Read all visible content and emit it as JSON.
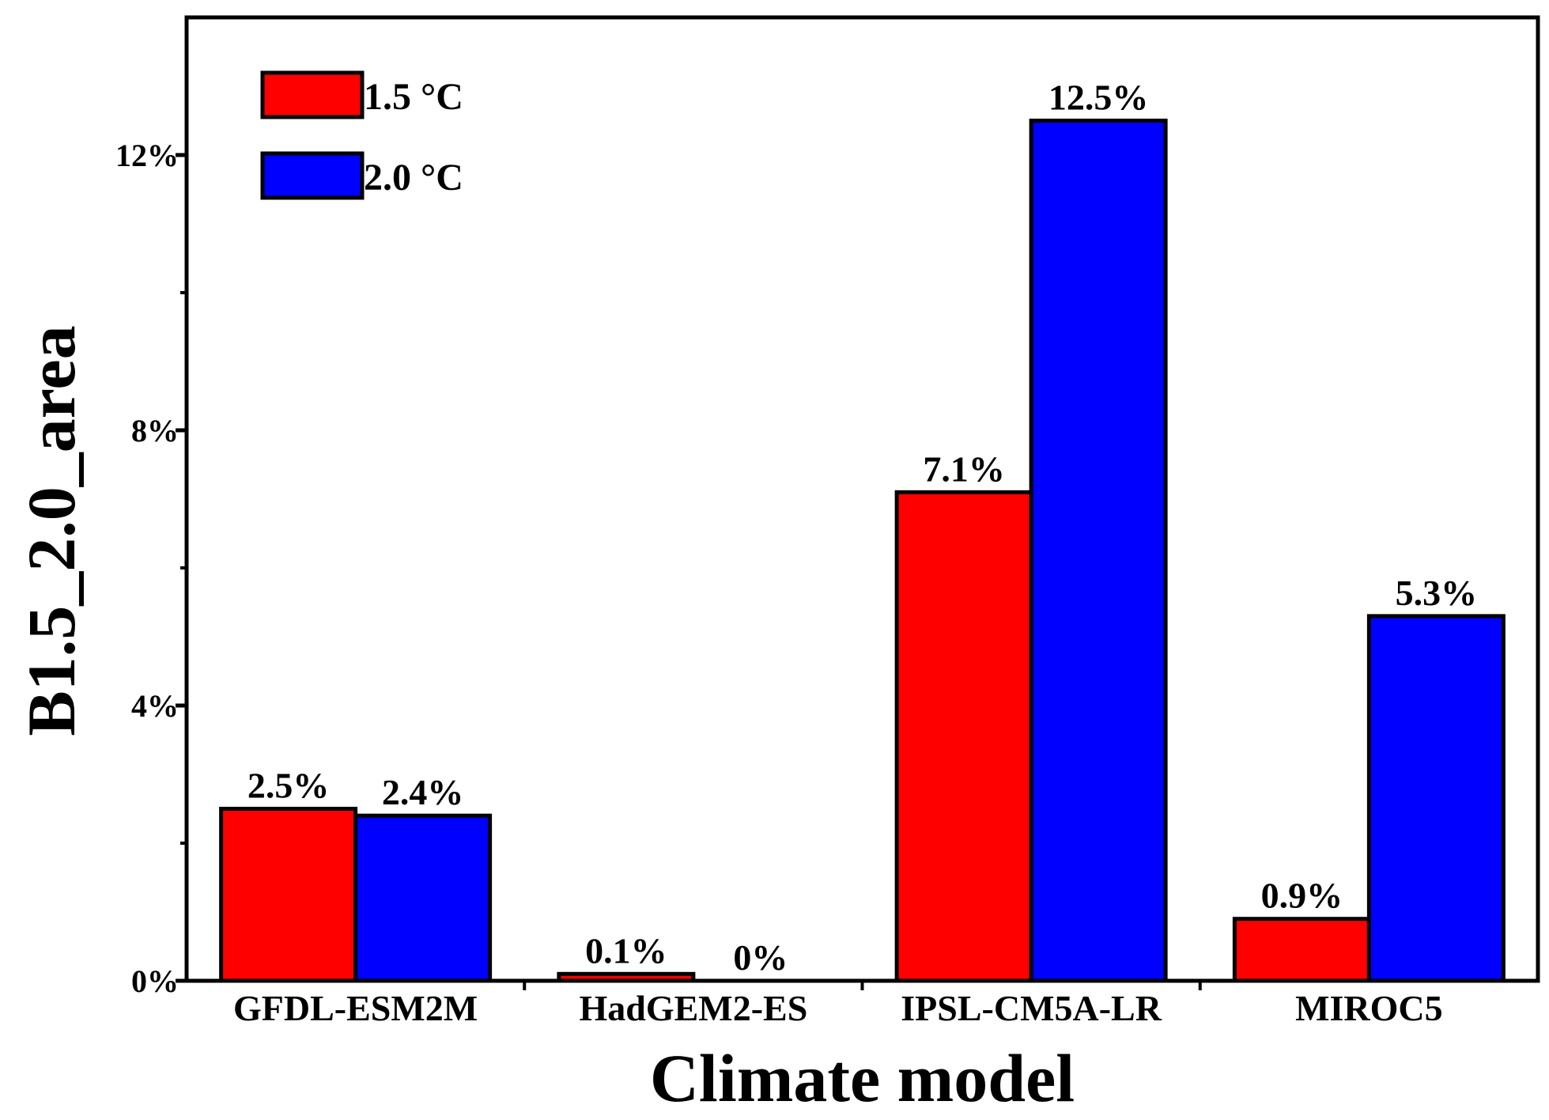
{
  "chart_data": {
    "type": "bar",
    "title": "",
    "xlabel": "Climate model",
    "ylabel": "B1.5_2.0_area",
    "categories": [
      "GFDL-ESM2M",
      "HadGEM2-ES",
      "IPSL-CM5A-LR",
      "MIROC5"
    ],
    "series": [
      {
        "name": "1.5 °C",
        "color": "#ff0000",
        "values": [
          2.5,
          0.1,
          7.1,
          0.9
        ],
        "labels": [
          "2.5%",
          "0.1%",
          "7.1%",
          "0.9%"
        ]
      },
      {
        "name": "2.0 °C",
        "color": "#0000ff",
        "values": [
          2.4,
          0,
          12.5,
          5.3
        ],
        "labels": [
          "2.4%",
          "0%",
          "12.5%",
          "5.3%"
        ]
      }
    ],
    "ylim": [
      0,
      14
    ],
    "yticks": [
      0,
      4,
      8,
      12
    ],
    "ytick_labels": [
      "0%",
      "4%",
      "8%",
      "12%"
    ],
    "legend_position": "top-left",
    "grid": false
  }
}
